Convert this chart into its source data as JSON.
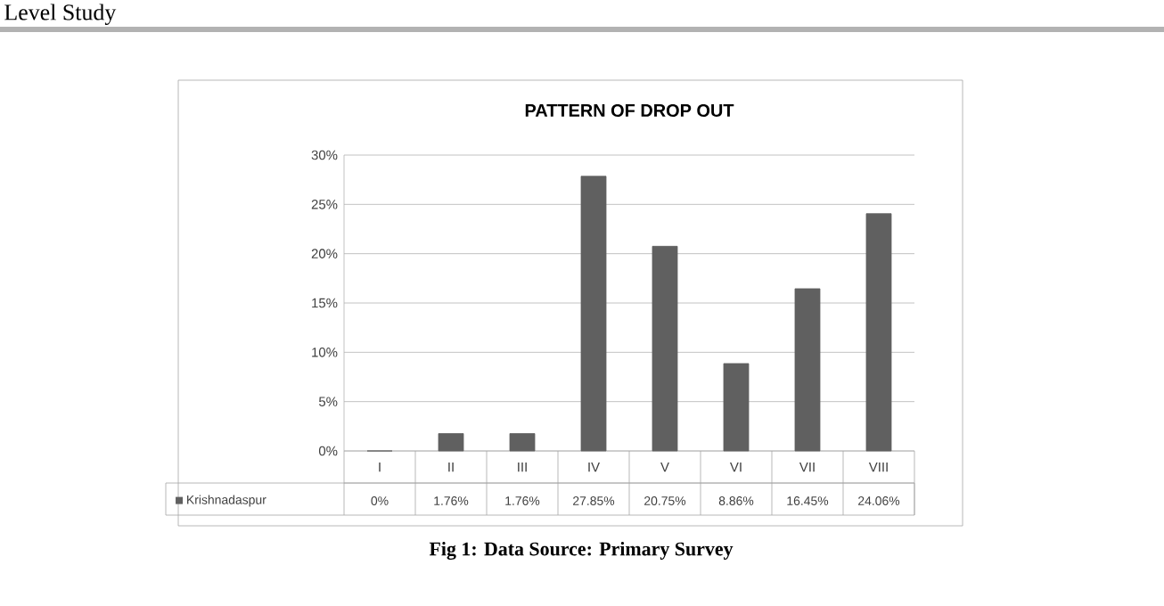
{
  "chart_data": {
    "type": "bar",
    "title": "PATTERN OF DROP OUT",
    "categories": [
      "I",
      "II",
      "III",
      "IV",
      "V",
      "VI",
      "VII",
      "VIII"
    ],
    "series": [
      {
        "name": "Krishnadaspur",
        "color": "#606060",
        "values": [
          0,
          1.76,
          1.76,
          27.85,
          20.75,
          8.86,
          16.45,
          24.06
        ],
        "value_labels": [
          "0%",
          "1.76%",
          "1.76%",
          "27.85%",
          "20.75%",
          "8.86%",
          "16.45%",
          "24.06%"
        ]
      }
    ],
    "ylim": [
      0,
      30
    ],
    "yticks": [
      {
        "value": 0,
        "label": "0%"
      },
      {
        "value": 5,
        "label": "5%"
      },
      {
        "value": 10,
        "label": "10%"
      },
      {
        "value": 15,
        "label": "15%"
      },
      {
        "value": 20,
        "label": "20%"
      },
      {
        "value": 25,
        "label": "25%"
      },
      {
        "value": 30,
        "label": "30%"
      }
    ],
    "grid": "y",
    "legend": "bottom",
    "annotations": [
      "Level Study",
      "Fig 1: Data Source: Primary Survey"
    ]
  }
}
